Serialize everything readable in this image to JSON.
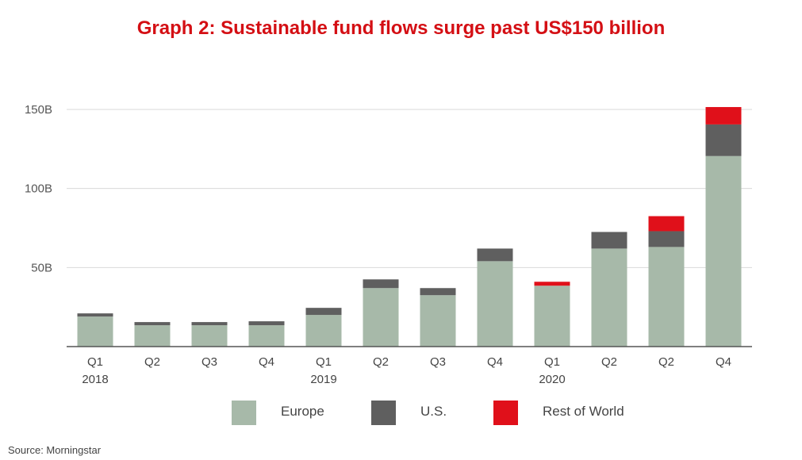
{
  "chart_data": {
    "type": "bar",
    "stacked": true,
    "title": "Graph 2: Sustainable fund flows surge past US$150 billion",
    "categories": [
      [
        "Q1",
        "2018"
      ],
      [
        "Q2",
        ""
      ],
      [
        "Q3",
        ""
      ],
      [
        "Q4",
        ""
      ],
      [
        "Q1",
        "2019"
      ],
      [
        "Q2",
        ""
      ],
      [
        "Q3",
        ""
      ],
      [
        "Q4",
        ""
      ],
      [
        "Q1",
        "2020"
      ],
      [
        "Q2",
        ""
      ],
      [
        "Q2",
        ""
      ],
      [
        "Q4",
        ""
      ]
    ],
    "series": [
      {
        "name": "Europe",
        "color": "#a7b9a9",
        "values": [
          19,
          13.5,
          13.5,
          13.5,
          20,
          37,
          32.5,
          54,
          38.5,
          62,
          63,
          120.5
        ]
      },
      {
        "name": "U.S.",
        "color": "#5f5f5f",
        "values": [
          2,
          2,
          2,
          2.5,
          4.5,
          5.5,
          4.5,
          8,
          0,
          10.5,
          10,
          20
        ]
      },
      {
        "name": "Rest of World",
        "color": "#e0101a",
        "values": [
          0,
          0,
          0,
          0,
          0,
          0,
          0,
          0,
          2.5,
          0,
          9.5,
          11
        ]
      }
    ],
    "yticks": [
      50,
      100,
      150
    ],
    "ytick_labels": [
      "50B",
      "100B",
      "150B"
    ],
    "ylim": [
      0,
      155
    ],
    "grid": true,
    "legend": "bottom",
    "source": "Source: Morningstar"
  }
}
